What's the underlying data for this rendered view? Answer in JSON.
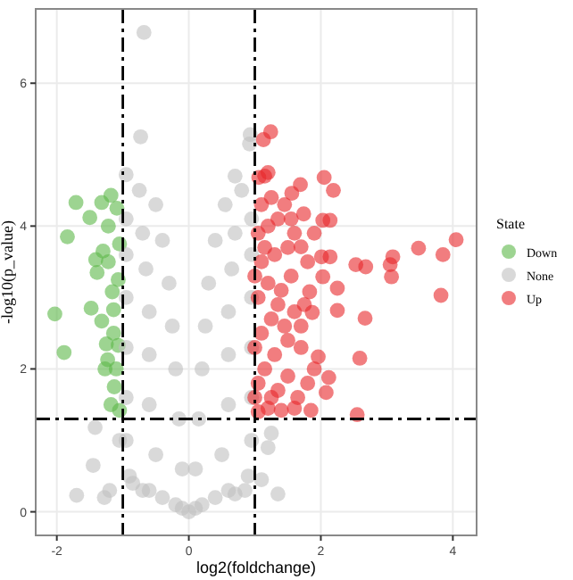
{
  "chart_data": {
    "type": "scatter",
    "xlabel": "log2(foldchange)",
    "ylabel": "-log10(p_value)",
    "legend_title": "State",
    "legend": "right",
    "grid": true,
    "marker": "circle",
    "xlim": [
      -2.32,
      4.36
    ],
    "ylim": [
      -0.33,
      7.04
    ],
    "xticks": [
      -2,
      0,
      2,
      4
    ],
    "yticks": [
      0,
      2,
      4,
      6
    ],
    "ref_lines": [
      {
        "axis": "x",
        "value": -1,
        "color": "#000000",
        "line_style": "dashed"
      },
      {
        "axis": "x",
        "value": 1,
        "color": "#000000",
        "line_style": "dashed"
      },
      {
        "axis": "y",
        "value": 1.3,
        "color": "#000000",
        "line_style": "dashed"
      }
    ],
    "series": [
      {
        "name": "Down",
        "color": "#5cb848",
        "x": [
          -2.03,
          -1.89,
          -1.84,
          -1.71,
          -1.5,
          -1.48,
          -1.41,
          -1.39,
          -1.32,
          -1.3,
          -1.18,
          -1.09,
          -1.32,
          -1.25,
          -1.23,
          -1.18,
          -1.14,
          -1.05,
          -1.07,
          -1.1,
          -1.05,
          -1.13,
          -1.22,
          -1.16,
          -1.07,
          -1.27,
          -1.14,
          -1.22
        ],
        "values": [
          2.77,
          2.23,
          3.85,
          4.33,
          4.12,
          2.85,
          3.53,
          3.35,
          4.33,
          3.65,
          4.43,
          4.25,
          2.67,
          2.35,
          2.13,
          1.5,
          2.5,
          3.75,
          3.25,
          2.0,
          1.42,
          1.75,
          3.5,
          3.08,
          2.33,
          2.0,
          2.83,
          4.0
        ]
      },
      {
        "name": "None",
        "color": "#c0c0c0",
        "x": [
          0,
          -0.1,
          0.1,
          -0.2,
          0.2,
          -0.4,
          0.4,
          -0.6,
          0.6,
          -0.9,
          0.9,
          -0.1,
          0.1,
          -0.5,
          0.5,
          -0.95,
          0.95,
          -0.15,
          0.15,
          -0.6,
          0.6,
          -0.95,
          0.95,
          -0.2,
          0.2,
          -0.6,
          0.6,
          -0.95,
          0.95,
          -0.25,
          0.25,
          -0.6,
          0.6,
          -0.95,
          0.95,
          -0.3,
          0.3,
          -0.65,
          0.65,
          -0.95,
          0.95,
          -0.4,
          0.4,
          -0.7,
          0.7,
          -0.95,
          0.95,
          -0.5,
          0.55,
          -0.75,
          0.8,
          -0.95,
          0.7,
          -0.68,
          -0.73,
          0.93,
          0.92,
          -1.42,
          -1.45,
          -1.7,
          -1.28,
          -1.2,
          1.35,
          1.2,
          1.1,
          -1.05,
          1.25,
          -0.85,
          -0.7,
          0.85,
          0.7
        ],
        "values": [
          0,
          0.05,
          0.05,
          0.1,
          0.1,
          0.2,
          0.2,
          0.3,
          0.3,
          0.5,
          0.5,
          0.6,
          0.6,
          0.8,
          0.8,
          1.0,
          1.0,
          1.3,
          1.3,
          1.5,
          1.5,
          1.6,
          1.6,
          2.0,
          2.0,
          2.2,
          2.2,
          2.3,
          2.3,
          2.6,
          2.6,
          2.8,
          2.8,
          3.0,
          3.0,
          3.2,
          3.2,
          3.4,
          3.4,
          3.6,
          3.6,
          3.8,
          3.8,
          3.9,
          3.9,
          4.1,
          4.1,
          4.3,
          4.3,
          4.5,
          4.5,
          4.72,
          4.7,
          6.71,
          5.25,
          5.28,
          5.15,
          1.18,
          0.65,
          0.23,
          0.2,
          0.3,
          0.25,
          0.9,
          0.45,
          1.0,
          1.1,
          0.4,
          0.3,
          0.3,
          0.25
        ]
      },
      {
        "name": "Up",
        "color": "#e8262a",
        "x": [
          4.05,
          3.85,
          3.82,
          3.48,
          3.09,
          3.05,
          3.07,
          2.67,
          2.59,
          2.55,
          2.53,
          2.68,
          2.25,
          2.25,
          2.19,
          2.05,
          2.03,
          2.14,
          2.14,
          2.01,
          2.03,
          2.12,
          2.08,
          1.85,
          1.96,
          1.87,
          1.83,
          1.7,
          1.74,
          1.56,
          1.69,
          1.24,
          1.13,
          1.2,
          1.06,
          1.05,
          1.2,
          1.4,
          1.6,
          1.05,
          1.15,
          1.3,
          1.5,
          1.7,
          1.1,
          1.25,
          1.45,
          1.6,
          1.05,
          1.2,
          1.4,
          1.55,
          1.75,
          1.1,
          1.3,
          1.5,
          1.05,
          1.2,
          1.35,
          1.55,
          1.1,
          1.25,
          1.9,
          1.65,
          1.35,
          1.8,
          1.6,
          1.45,
          1.9,
          1.35,
          1.15,
          1.7,
          1.0,
          1.0,
          1.0,
          1.5,
          1.25,
          1.8,
          1.15
        ],
        "values": [
          3.81,
          3.6,
          3.03,
          3.69,
          3.57,
          3.46,
          3.29,
          2.71,
          2.15,
          1.36,
          3.46,
          3.43,
          3.13,
          2.82,
          4.5,
          4.68,
          4.08,
          4.08,
          3.57,
          3.57,
          3.29,
          1.88,
          1.67,
          1.42,
          2.17,
          2.79,
          3.08,
          3.71,
          4.17,
          4.46,
          4.58,
          5.32,
          5.21,
          4.75,
          4.68,
          1.4,
          1.45,
          1.42,
          1.45,
          1.8,
          2.0,
          2.2,
          1.9,
          2.3,
          2.5,
          2.7,
          2.6,
          2.8,
          3.0,
          3.2,
          3.1,
          3.3,
          2.9,
          3.5,
          3.6,
          3.7,
          3.9,
          4.0,
          4.1,
          4.1,
          4.3,
          4.4,
          2.0,
          1.6,
          1.7,
          3.5,
          3.9,
          4.3,
          3.9,
          2.9,
          3.7,
          2.6,
          2.3,
          3.3,
          1.6,
          2.4,
          1.6,
          1.8,
          4.7
        ]
      }
    ]
  }
}
